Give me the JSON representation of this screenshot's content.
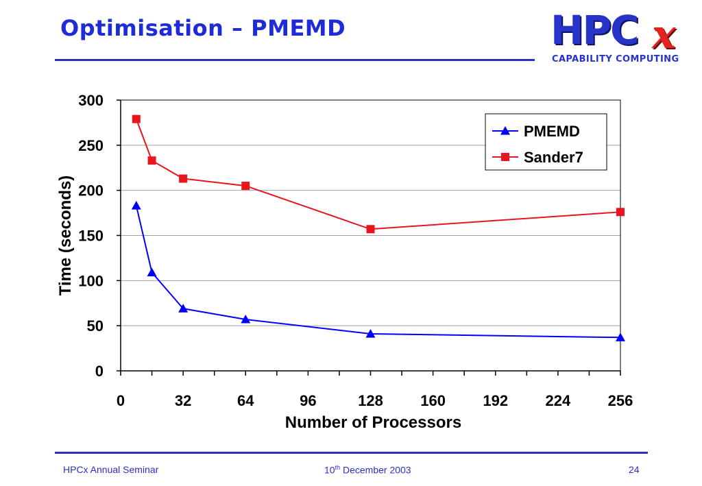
{
  "slide": {
    "title": "Optimisation – PMEMD"
  },
  "logo": {
    "main": "HPC",
    "x": "x",
    "tagline": "CAPABILITY COMPUTING"
  },
  "footer": {
    "left": "HPCx Annual Seminar",
    "date_day": "10",
    "date_sup": "th",
    "date_rest": " December 2003",
    "page": "24"
  },
  "chart_data": {
    "type": "line",
    "xlabel": "Number of Processors",
    "ylabel": "Time (seconds)",
    "xlim": [
      0,
      256
    ],
    "ylim": [
      0,
      300
    ],
    "xticks": [
      0,
      32,
      64,
      96,
      128,
      160,
      192,
      224,
      256
    ],
    "yticks": [
      0,
      50,
      100,
      150,
      200,
      250,
      300
    ],
    "grid": "horizontal",
    "legend_position": "top-right",
    "series": [
      {
        "name": "PMEMD",
        "color": "#0000ff",
        "marker": "triangle",
        "x": [
          8,
          16,
          32,
          64,
          128,
          256
        ],
        "y": [
          183,
          109,
          69,
          57,
          41,
          37
        ]
      },
      {
        "name": "Sander7",
        "color": "#e8141e",
        "marker": "square",
        "x": [
          8,
          16,
          32,
          64,
          128,
          256
        ],
        "y": [
          279,
          233,
          213,
          205,
          157,
          176
        ]
      }
    ]
  }
}
